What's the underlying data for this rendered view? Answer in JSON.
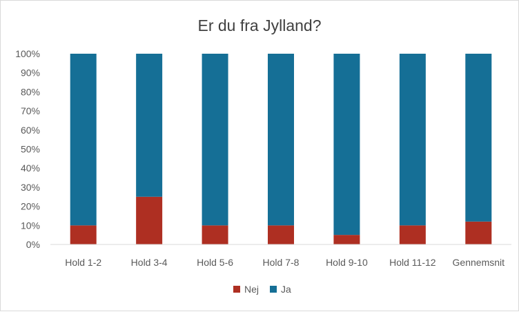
{
  "chart_data": {
    "type": "bar",
    "stacked": true,
    "normalized_percent": true,
    "title": "Er du fra Jylland?",
    "xlabel": "",
    "ylabel": "",
    "categories": [
      "Hold 1-2",
      "Hold 3-4",
      "Hold 5-6",
      "Hold 7-8",
      "Hold 9-10",
      "Hold 11-12",
      "Gennemsnit"
    ],
    "series": [
      {
        "name": "Nej",
        "color": "#ae2f22",
        "values": [
          10,
          25,
          10,
          10,
          5,
          10,
          12
        ]
      },
      {
        "name": "Ja",
        "color": "#156f96",
        "values": [
          90,
          75,
          90,
          90,
          95,
          90,
          88
        ]
      }
    ],
    "ylim": [
      0,
      100
    ],
    "yticks": [
      "0%",
      "10%",
      "20%",
      "30%",
      "40%",
      "50%",
      "60%",
      "70%",
      "80%",
      "90%",
      "100%"
    ],
    "grid": false,
    "legend_position": "bottom"
  }
}
